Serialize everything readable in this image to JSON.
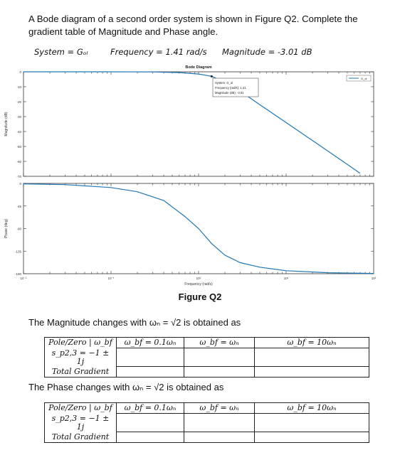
{
  "question": "A Bode diagram of a second order system is shown in Figure Q2. Complete the gradient table of Magnitude and Phase angle.",
  "handwritten": {
    "system": "System = Gₒₗ",
    "frequency": "Frequency = 1.41 rad/s",
    "magnitude": "Magnitude = -3.01 dB"
  },
  "figure_caption": "Figure Q2",
  "chart_data": [
    {
      "type": "line",
      "title": "Bode Diagram",
      "ylabel": "Magnitude (dB)",
      "xscale": "log",
      "xlim": [
        0.01,
        100
      ],
      "ylim": [
        -70,
        0
      ],
      "yticks": [
        0,
        -10,
        -20,
        -30,
        -40,
        -50,
        -60,
        -70
      ],
      "ytick_labels": [
        "0",
        "-10",
        "-20",
        "-30",
        "-40",
        "-50",
        "-60",
        "-70"
      ],
      "legend": {
        "entry": "G_ol",
        "placement": "top-right"
      },
      "series": [
        {
          "x": [
            0.01,
            0.1,
            0.3,
            0.6,
            1.0,
            1.41,
            2,
            3,
            5,
            10,
            20,
            50,
            70
          ],
          "y": [
            0,
            0,
            -0.1,
            -0.5,
            -1.5,
            -3.01,
            -7,
            -13,
            -22,
            -34,
            -46,
            -62,
            -68
          ]
        }
      ],
      "datatip": {
        "x": 1.41,
        "y": -3.01,
        "lines": [
          "System: G_ol",
          "Frequency (rad/s): 1.41",
          "Magnitude (dB): -3.01"
        ]
      },
      "grid": false
    },
    {
      "type": "line",
      "xlabel": "Frequency (rad/s)",
      "ylabel": "Phase (deg)",
      "xscale": "log",
      "xlim": [
        0.01,
        100
      ],
      "ylim": [
        -180,
        0
      ],
      "yticks": [
        0,
        -45,
        -90,
        -135,
        -180
      ],
      "ytick_labels": [
        "0",
        "-45",
        "-90",
        "-135",
        "-180"
      ],
      "xticks": [
        0.01,
        0.1,
        1,
        10,
        100
      ],
      "xtick_labels": [
        "10⁻²",
        "10⁻¹",
        "10⁰",
        "10¹",
        "10²"
      ],
      "series": [
        {
          "x": [
            0.01,
            0.03,
            0.1,
            0.2,
            0.4,
            0.7,
            1.0,
            1.41,
            2,
            3,
            5,
            10,
            30,
            100
          ],
          "y": [
            -0.8,
            -2.4,
            -8.2,
            -16.6,
            -34,
            -66,
            -90,
            -120,
            -143,
            -158,
            -167,
            -174,
            -178,
            -179.5
          ]
        }
      ],
      "grid": false
    }
  ],
  "magnitude_sentence": "The Magnitude changes with ωₙ = √2 is obtained as",
  "phase_sentence": "The Phase changes with ωₙ = √2 is obtained as",
  "tables": {
    "magnitude": {
      "header": [
        "Pole/Zero | ω_bf",
        "ω_bf = 0.1ωₙ",
        "ω_bf = ωₙ",
        "ω_bf = 10ωₙ"
      ],
      "rows": [
        "s_p2,3 = −1 ± 1j",
        "Total Gradient"
      ]
    },
    "phase": {
      "header": [
        "Pole/Zero | ω_bf",
        "ω_bf = 0.1ωₙ",
        "ω_bf = ωₙ",
        "ω_bf = 10ωₙ"
      ],
      "rows": [
        "s_p2,3 = −1 ± 1j",
        "Total Gradient"
      ]
    }
  }
}
